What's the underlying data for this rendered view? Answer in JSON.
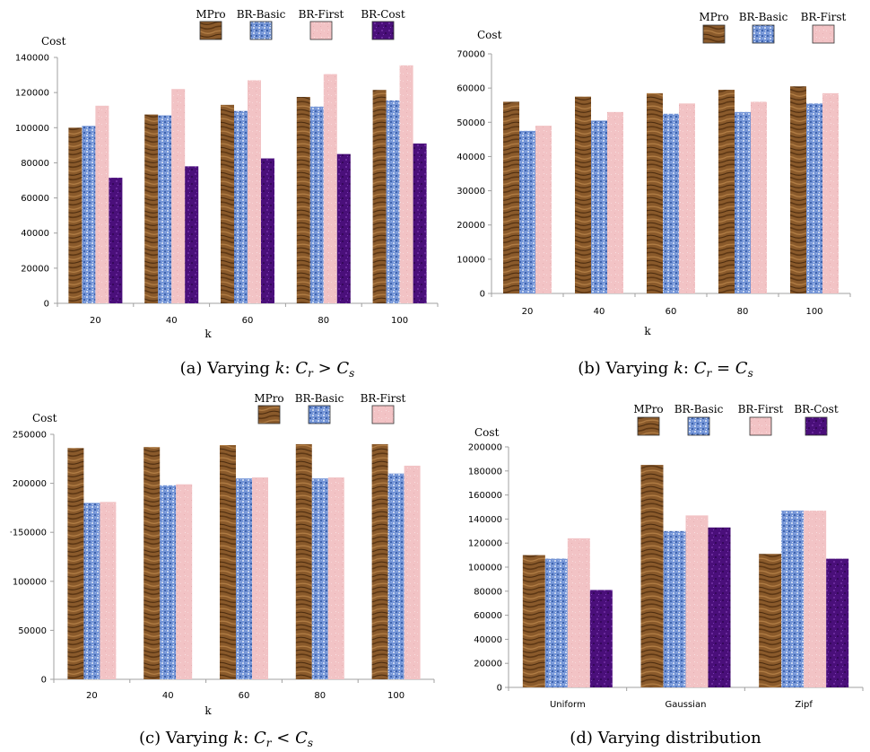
{
  "colors": {
    "MPro": "#8a5a2b",
    "BR-Basic": "#6f8fd2",
    "BR-First": "#f2c3c5",
    "BR-Cost": "#4a0f7a",
    "axis": "#a0a0a0"
  },
  "captions": [
    {
      "prefix": "(a) Varying ",
      "var": "k",
      "sep": ": ",
      "lhs": "C",
      "lhs_sub": "r",
      "op": " > ",
      "rhs": "C",
      "rhs_sub": "s"
    },
    {
      "prefix": "(b) Varying ",
      "var": "k",
      "sep": ": ",
      "lhs": "C",
      "lhs_sub": "r",
      "op": " = ",
      "rhs": "C",
      "rhs_sub": "s"
    },
    {
      "prefix": "(c) Varying ",
      "var": "k",
      "sep": ": ",
      "lhs": "C",
      "lhs_sub": "r",
      "op": " < ",
      "rhs": "C",
      "rhs_sub": "s"
    },
    {
      "text": "(d) Varying distribution"
    }
  ],
  "chart_data": [
    {
      "type": "bar",
      "ylabel": "Cost",
      "xlabel": "k",
      "ylim": [
        0,
        140000
      ],
      "yticks": [
        0,
        20000,
        40000,
        60000,
        80000,
        100000,
        120000,
        140000
      ],
      "ytick_labels": [
        "0",
        "20000",
        "40000",
        "60000",
        "80000",
        "100000",
        "120000",
        "140000"
      ],
      "categories": [
        "20",
        "40",
        "60",
        "80",
        "100"
      ],
      "series": [
        {
          "name": "MPro",
          "values": [
            100000,
            107500,
            113000,
            117500,
            121500
          ]
        },
        {
          "name": "BR-Basic",
          "values": [
            101000,
            107000,
            109500,
            112000,
            115500
          ]
        },
        {
          "name": "BR-First",
          "values": [
            112500,
            122000,
            127000,
            130500,
            135500
          ]
        },
        {
          "name": "BR-Cost",
          "values": [
            71500,
            78000,
            82500,
            85000,
            91000
          ]
        }
      ]
    },
    {
      "type": "bar",
      "ylabel": "Cost",
      "xlabel": "k",
      "ylim": [
        0,
        70000
      ],
      "yticks": [
        0,
        10000,
        20000,
        30000,
        40000,
        50000,
        60000,
        70000
      ],
      "ytick_labels": [
        "0",
        "10000",
        "20000",
        "30000",
        "40000",
        "50000",
        "60000",
        "70000"
      ],
      "categories": [
        "20",
        "40",
        "60",
        "80",
        "100"
      ],
      "series": [
        {
          "name": "MPro",
          "values": [
            56000,
            57500,
            58500,
            59500,
            60500
          ]
        },
        {
          "name": "BR-Basic",
          "values": [
            47500,
            50500,
            52500,
            53000,
            55500
          ]
        },
        {
          "name": "BR-First",
          "values": [
            49000,
            53000,
            55500,
            56000,
            58500
          ]
        }
      ]
    },
    {
      "type": "bar",
      "ylabel": "Cost",
      "xlabel": "k",
      "ylim": [
        0,
        250000
      ],
      "yticks": [
        0,
        50000,
        100000,
        150000,
        200000,
        250000
      ],
      "ytick_labels": [
        "0",
        "50000",
        "100000",
        "·150000",
        "200000",
        "250000"
      ],
      "categories": [
        "20",
        "40",
        "60",
        "80",
        "100"
      ],
      "series": [
        {
          "name": "MPro",
          "values": [
            236000,
            237000,
            239000,
            240000,
            240000
          ]
        },
        {
          "name": "BR-Basic",
          "values": [
            180000,
            198000,
            205000,
            205000,
            210000
          ]
        },
        {
          "name": "BR-First",
          "values": [
            181000,
            199000,
            206000,
            206000,
            218000
          ]
        }
      ]
    },
    {
      "type": "bar",
      "ylabel": "Cost",
      "xlabel": "",
      "ylim": [
        0,
        200000
      ],
      "yticks": [
        0,
        20000,
        40000,
        60000,
        80000,
        100000,
        120000,
        140000,
        160000,
        180000,
        200000
      ],
      "ytick_labels": [
        "0",
        "20000",
        "40000",
        "60000",
        "80000",
        "100000",
        "120000",
        "140000",
        "160000",
        "180000",
        "200000"
      ],
      "categories": [
        "Uniform",
        "Gaussian",
        "Zipf"
      ],
      "series": [
        {
          "name": "MPro",
          "values": [
            110000,
            185000,
            111000
          ]
        },
        {
          "name": "BR-Basic",
          "values": [
            107000,
            130000,
            147000
          ]
        },
        {
          "name": "BR-First",
          "values": [
            124000,
            143000,
            147000
          ]
        },
        {
          "name": "BR-Cost",
          "values": [
            81000,
            133000,
            107000
          ]
        }
      ]
    }
  ]
}
